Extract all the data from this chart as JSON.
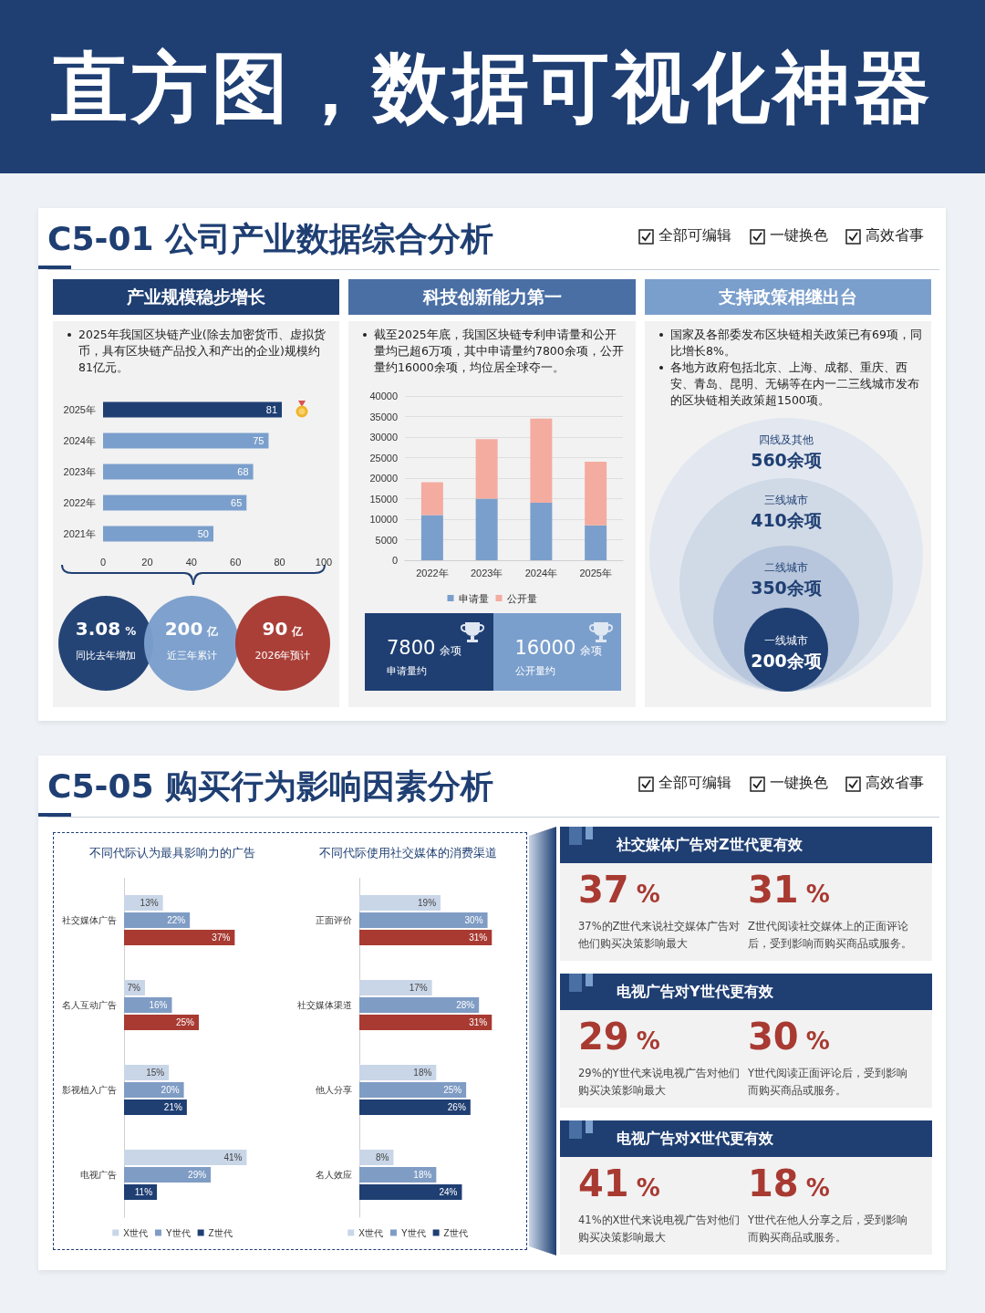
{
  "chart_data": [
    {
      "type": "other",
      "title": "直方图，数据可视化神器"
    },
    {
      "type": "other",
      "title": "C5-01 公司产业数据综合分析",
      "annotations": [
        "全部可编辑",
        "一键换色",
        "高效省事"
      ]
    },
    {
      "type": "bar",
      "orientation": "horizontal",
      "title": "产业规模稳步增长",
      "subtitle": "2025年我国区块链产业(除去加密货币、虚拟货币，具有区块链产品投入和产出的企业)规模约81亿元。",
      "categories": [
        "2025年",
        "2024年",
        "2023年",
        "2022年",
        "2021年"
      ],
      "values": [
        81,
        75,
        68,
        65,
        50
      ],
      "colors": [
        "#1f3f73",
        "#7b9fcc",
        "#7b9fcc",
        "#7b9fcc",
        "#7b9fcc"
      ],
      "xlim": [
        0,
        100
      ],
      "xticks": [
        0,
        20,
        40,
        60,
        80,
        100
      ],
      "data_labels": true,
      "grid": false,
      "annotations": [
        "3.08 %",
        "同比去年增加",
        "200 亿",
        "近三年累计",
        "90 亿",
        "2026年预计"
      ]
    },
    {
      "type": "bar",
      "stacked": true,
      "title": "科技创新能力第一",
      "subtitle": "截至2025年底，我国区块链专利申请量和公开量均已超6万项，其中申请量约7800余项，公开量约16000余项，均位居全球夺一。",
      "categories": [
        "2022年",
        "2023年",
        "2024年",
        "2025年"
      ],
      "series": [
        {
          "name": "申请量",
          "color": "#7b9fcc",
          "values": [
            11000,
            15000,
            14000,
            8500
          ]
        },
        {
          "name": "公开量",
          "color": "#f4aca0",
          "values": [
            8000,
            14500,
            20500,
            15500
          ]
        }
      ],
      "ylim": [
        0,
        40000
      ],
      "yticks": [
        0,
        5000,
        10000,
        15000,
        20000,
        25000,
        30000,
        35000,
        40000
      ],
      "grid": "y",
      "legend": "bottom",
      "annotations": [
        "7800 余项",
        "申请量约",
        "16000 余项",
        "公开量约"
      ]
    },
    {
      "type": "other",
      "title": "支持政策相继出台",
      "annotations": [
        "国家及各部委发布区块链相关政策已有69项，同比增长8%。",
        "各地方政府包括北京、上海、成都、重庆、西安、青岛、昆明、无锡等在内一二三线城市发布的区块链相关政策超1500项。"
      ],
      "categories": [
        "四线及其他",
        "三线城市",
        "二线城市",
        "一线城市"
      ],
      "value_labels": [
        "560余项",
        "410余项",
        "350余项",
        "200余项"
      ],
      "colors": [
        "#e3e8f0",
        "#d0d9e6",
        "#b7c6dc",
        "#1f3f73"
      ]
    },
    {
      "type": "other",
      "title": "C5-05 购买行为影响因素分析",
      "annotations": [
        "全部可编辑",
        "一键换色",
        "高效省事"
      ]
    },
    {
      "type": "bar",
      "orientation": "horizontal",
      "title": "不同代际认为最具影响力的广告",
      "categories": [
        "社交媒体广告",
        "名人互动广告",
        "影视植入广告",
        "电视广告"
      ],
      "tick_labels": "y",
      "legend": "bottom",
      "grid": false,
      "series": [
        {
          "name": "X世代",
          "color": "#c9d6e8",
          "values": [
            13,
            7,
            15,
            41
          ],
          "value_labels": [
            "13%",
            "7%",
            "15%",
            "41%"
          ]
        },
        {
          "name": "Y世代",
          "color": "#7f9cc4",
          "values": [
            22,
            16,
            20,
            29
          ],
          "value_labels": [
            "22%",
            "16%",
            "20%",
            "29%"
          ]
        },
        {
          "name": "Z世代",
          "color": "#1f3f73",
          "colors": [
            "#a83a32",
            "#a83a32",
            "#1f3f73",
            "#1f3f73"
          ],
          "values": [
            37,
            25,
            21,
            11
          ],
          "value_labels": [
            "37%",
            "25%",
            "21%",
            "11%"
          ]
        }
      ]
    },
    {
      "type": "bar",
      "orientation": "horizontal",
      "title": "不同代际使用社交媒体的消费渠道",
      "categories": [
        "正面评价",
        "社交媒体渠道",
        "他人分享",
        "名人效应"
      ],
      "tick_labels": "y",
      "legend": "bottom",
      "grid": false,
      "series": [
        {
          "name": "X世代",
          "color": "#c9d6e8",
          "values": [
            19,
            17,
            18,
            8
          ],
          "value_labels": [
            "19%",
            "17%",
            "18%",
            "8%"
          ]
        },
        {
          "name": "Y世代",
          "color": "#7f9cc4",
          "values": [
            30,
            28,
            25,
            18
          ],
          "value_labels": [
            "30%",
            "28%",
            "25%",
            "18%"
          ]
        },
        {
          "name": "Z世代",
          "color": "#1f3f73",
          "colors": [
            "#a83a32",
            "#a83a32",
            "#1f3f73",
            "#1f3f73"
          ],
          "values": [
            31,
            31,
            26,
            24
          ],
          "value_labels": [
            "31%",
            "31%",
            "26%",
            "24%"
          ]
        }
      ]
    },
    {
      "type": "other",
      "title": "社交媒体广告对Z世代更有效",
      "annotations": [
        "37 %",
        "37%的Z世代来说社交媒体广告对他们购买决策影响最大",
        "31 %",
        "Z世代阅读社交媒体上的正面评论后，受到影响而购买商品或服务。"
      ]
    },
    {
      "type": "other",
      "title": "电视广告对Y世代更有效",
      "annotations": [
        "29 %",
        "29%的Y世代来说电视广告对他们购买决策影响最大",
        "30 %",
        "Y世代阅读正面评论后，受到影响而购买商品或服务。"
      ]
    },
    {
      "type": "other",
      "title": "电视广告对X世代更有效",
      "annotations": [
        "41 %",
        "41%的X世代来说电视广告对他们购买决策影响最大",
        "18 %",
        "Y世代在他人分享之后，受到影响而购买商品或服务。"
      ]
    }
  ]
}
